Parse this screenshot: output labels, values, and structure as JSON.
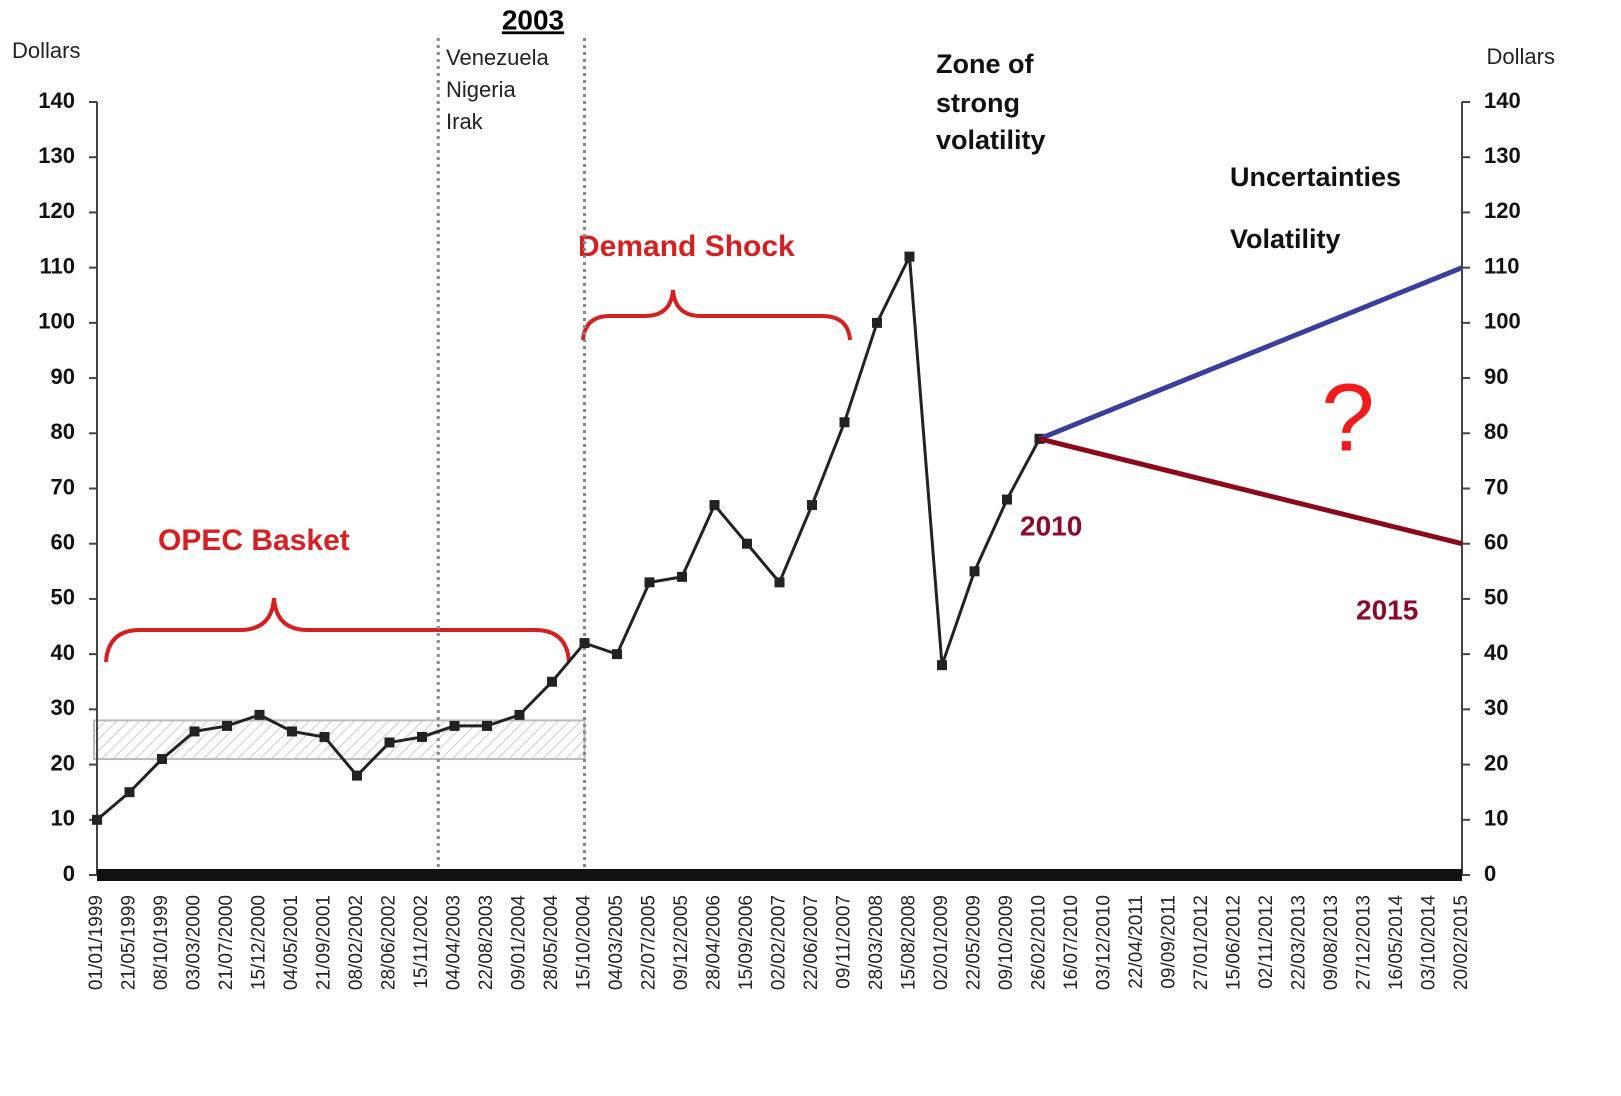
{
  "chart_data": {
    "type": "line",
    "title": "2003",
    "y_label": "Dollars",
    "y2_label": "Dollars",
    "categories": [
      "01/01/1999",
      "21/05/1999",
      "08/10/1999",
      "03/03/2000",
      "21/07/2000",
      "15/12/2000",
      "04/05/2001",
      "21/09/2001",
      "08/02/2002",
      "28/06/2002",
      "15/11/2002",
      "04/04/2003",
      "22/08/2003",
      "09/01/2004",
      "28/05/2004",
      "15/10/2004",
      "04/03/2005",
      "22/07/2005",
      "09/12/2005",
      "28/04/2006",
      "15/09/2006",
      "02/02/2007",
      "22/06/2007",
      "09/11/2007",
      "28/03/2008",
      "15/08/2008",
      "02/01/2009",
      "22/05/2009",
      "09/10/2009",
      "26/02/2010",
      "16/07/2010",
      "03/12/2010",
      "22/04/2011",
      "09/09/2011",
      "27/01/2012",
      "15/06/2012",
      "02/11/2012",
      "22/03/2013",
      "09/08/2013",
      "27/12/2013",
      "16/05/2014",
      "03/10/2014",
      "20/02/2015"
    ],
    "series": [
      {
        "name": "OPEC Basket",
        "color": "#222222",
        "values": [
          10,
          15,
          21,
          26,
          27,
          29,
          26,
          25,
          18,
          24,
          25,
          27,
          27,
          29,
          35,
          42,
          40,
          53,
          54,
          67,
          60,
          53,
          67,
          82,
          100,
          112,
          38,
          55,
          68,
          79,
          null,
          null,
          null,
          null,
          null,
          null,
          null,
          null,
          null,
          null,
          null,
          null,
          null
        ]
      },
      {
        "name": "Uncertainties",
        "color": "#3a3f9e",
        "x": [
          "26/02/2010",
          "20/02/2015"
        ],
        "values": [
          79,
          110
        ]
      },
      {
        "name": "Volatility",
        "color": "#8b0a1a",
        "x": [
          "26/02/2010",
          "20/02/2015"
        ],
        "values": [
          79,
          60
        ]
      }
    ],
    "band": [
      21,
      28
    ],
    "ylim": [
      0,
      140
    ],
    "yticks": [
      0,
      10,
      20,
      30,
      40,
      50,
      60,
      70,
      80,
      90,
      100,
      110,
      120,
      130,
      140
    ],
    "y2lim": [
      0,
      140
    ],
    "y2ticks": [
      0,
      10,
      20,
      30,
      40,
      50,
      60,
      70,
      80,
      90,
      100,
      110,
      120,
      130,
      140
    ],
    "annotations": [
      "Venezuela",
      "Nigeria",
      "Irak",
      "Zone of",
      "strong",
      "volatility",
      "Demand Shock",
      "2010",
      "2015",
      "?"
    ]
  }
}
